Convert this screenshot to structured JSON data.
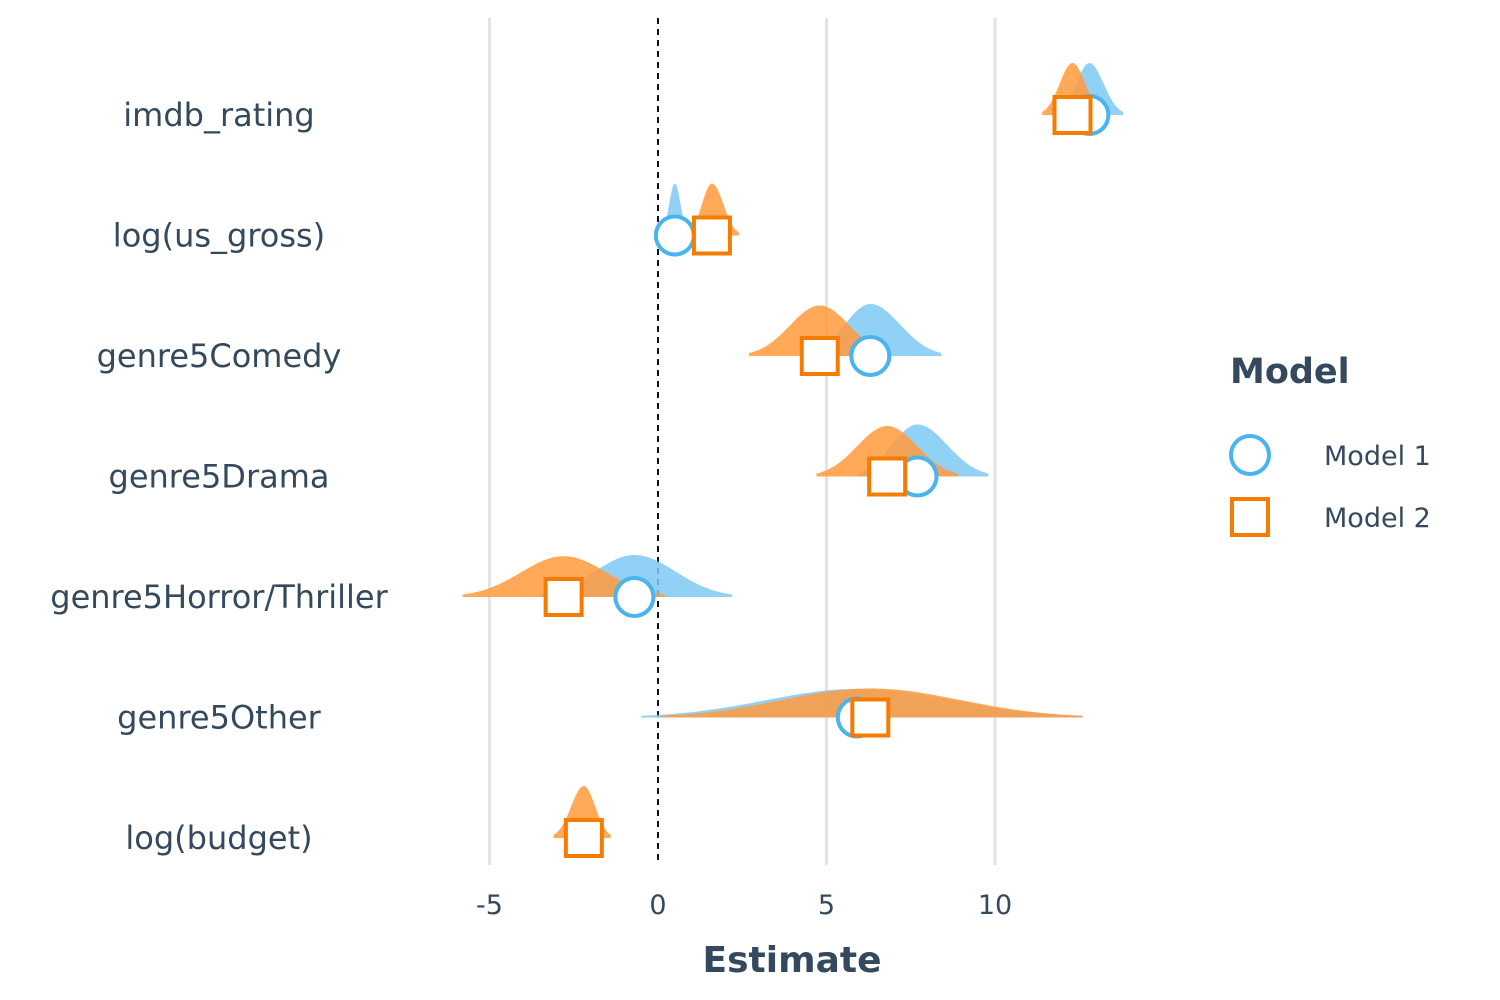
{
  "chart_data": {
    "type": "scatter",
    "subtype": "coefficient-plot-with-density",
    "xlabel": "Estimate",
    "ylabel": "",
    "xlim": [
      -5,
      10
    ],
    "x_ticks": [
      -5,
      0,
      5,
      10
    ],
    "x_tick_labels": [
      "-5",
      "0",
      "5",
      "10"
    ],
    "reference_line_x": 0,
    "grid": "vertical major",
    "terms": [
      "imdb_rating",
      "log(us_gross)",
      "genre5Comedy",
      "genre5Drama",
      "genre5Horror/Thriller",
      "genre5Other",
      "log(budget)"
    ],
    "legend": {
      "title": "Model",
      "position": "right"
    },
    "series": [
      {
        "name": "Model 1",
        "marker": "circle",
        "color": "#4ab4f0",
        "fill": "#7fc9f5",
        "estimates": [
          12.8,
          0.5,
          6.3,
          7.7,
          -0.7,
          5.9,
          null
        ],
        "density_range": [
          [
            11.9,
            13.8
          ],
          [
            0.1,
            0.9
          ],
          [
            4.5,
            8.4
          ],
          [
            5.9,
            9.8
          ],
          [
            -3.5,
            2.2
          ],
          [
            -0.5,
            12.6
          ],
          null
        ]
      },
      {
        "name": "Model 2",
        "marker": "square",
        "color": "#f57c00",
        "fill": "#ff9a3c",
        "estimates": [
          12.3,
          1.6,
          4.8,
          6.8,
          -2.8,
          6.3,
          -2.2
        ],
        "density_range": [
          [
            11.4,
            13.2
          ],
          [
            0.9,
            2.4
          ],
          [
            2.7,
            6.9
          ],
          [
            4.7,
            8.9
          ],
          [
            -5.8,
            0.2
          ],
          [
            0.1,
            12.6
          ],
          [
            -3.1,
            -1.4
          ]
        ]
      }
    ]
  }
}
